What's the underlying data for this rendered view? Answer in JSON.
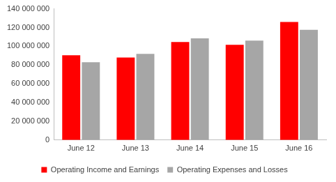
{
  "chart_data": {
    "type": "bar",
    "categories": [
      "June 12",
      "June 13",
      "June 14",
      "June 15",
      "June 16"
    ],
    "series": [
      {
        "name": "Operating Income and Earnings",
        "color": "#ff0000",
        "values": [
          90500000,
          88000000,
          104500000,
          101500000,
          126000000
        ]
      },
      {
        "name": "Operating Expenses and Losses",
        "color": "#a6a6a6",
        "values": [
          83000000,
          92000000,
          108500000,
          106000000,
          117500000
        ]
      }
    ],
    "ylim": [
      0,
      140000000
    ],
    "yticks": [
      0,
      {
        "value": 20000000,
        "label": "20 000 000"
      },
      {
        "value": 40000000,
        "label": "40 000 000"
      },
      {
        "value": 60000000,
        "label": "60 000 000"
      },
      {
        "value": 80000000,
        "label": "80 000 000"
      },
      {
        "value": 100000000,
        "label": "100 000 000"
      },
      {
        "value": 120000000,
        "label": "120 000 000"
      },
      {
        "value": 140000000,
        "label": "140 000 000"
      }
    ],
    "grid": false,
    "legend": "bottom"
  }
}
